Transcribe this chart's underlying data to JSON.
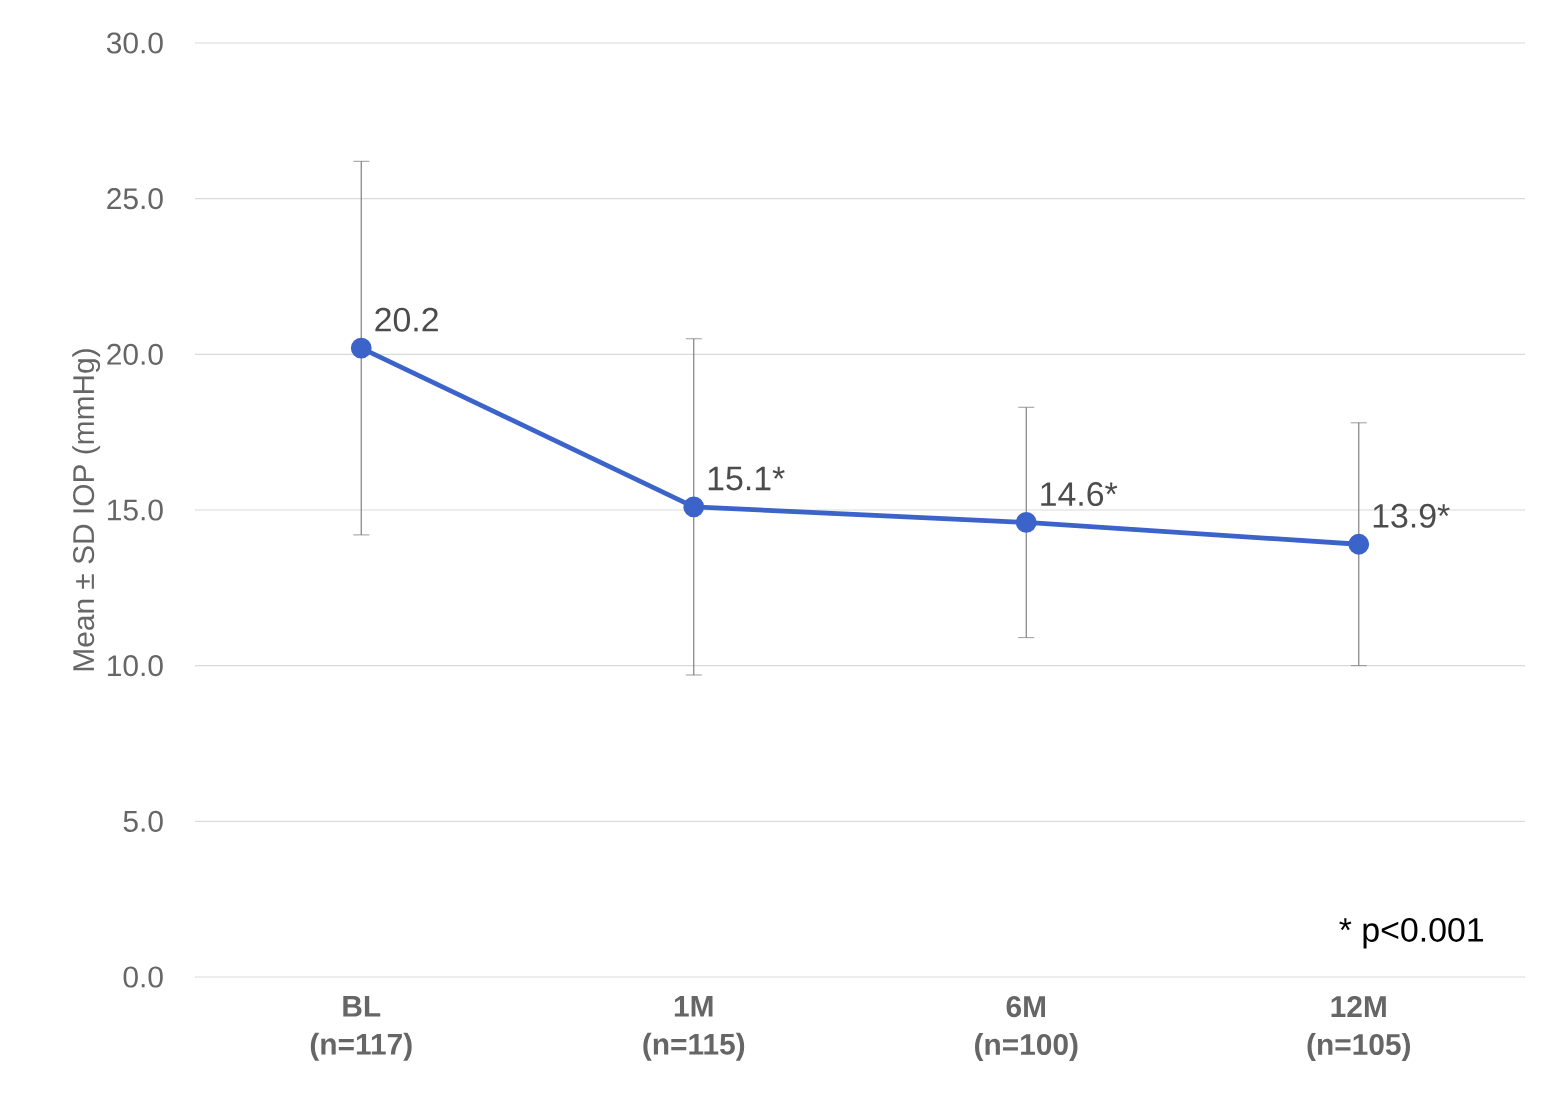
{
  "chart_data": {
    "type": "line",
    "ylabel": "Mean ± SD IOP (mmHg)",
    "categories": [
      "BL (n=117)",
      "1M (n=115)",
      "6M (n=100)",
      "12M (n=105)"
    ],
    "values": [
      20.2,
      15.1,
      14.6,
      13.9
    ],
    "errors": [
      6.0,
      5.4,
      3.7,
      3.9
    ],
    "value_labels": [
      "20.2",
      "15.1*",
      "14.6*",
      "13.9*"
    ],
    "color": "#3b63c9",
    "marker": "circle",
    "line_style": "solid",
    "grid": "y",
    "ylim": [
      0,
      30
    ],
    "yticks": [
      {
        "value": 0,
        "label": "0.0"
      },
      {
        "value": 5,
        "label": "5.0"
      },
      {
        "value": 10,
        "label": "10.0"
      },
      {
        "value": 15,
        "label": "15.0"
      },
      {
        "value": 20,
        "label": "20.0"
      },
      {
        "value": 25,
        "label": "25.0"
      },
      {
        "value": 30,
        "label": "30.0"
      }
    ],
    "annotations": [
      "* p<0.001"
    ]
  }
}
